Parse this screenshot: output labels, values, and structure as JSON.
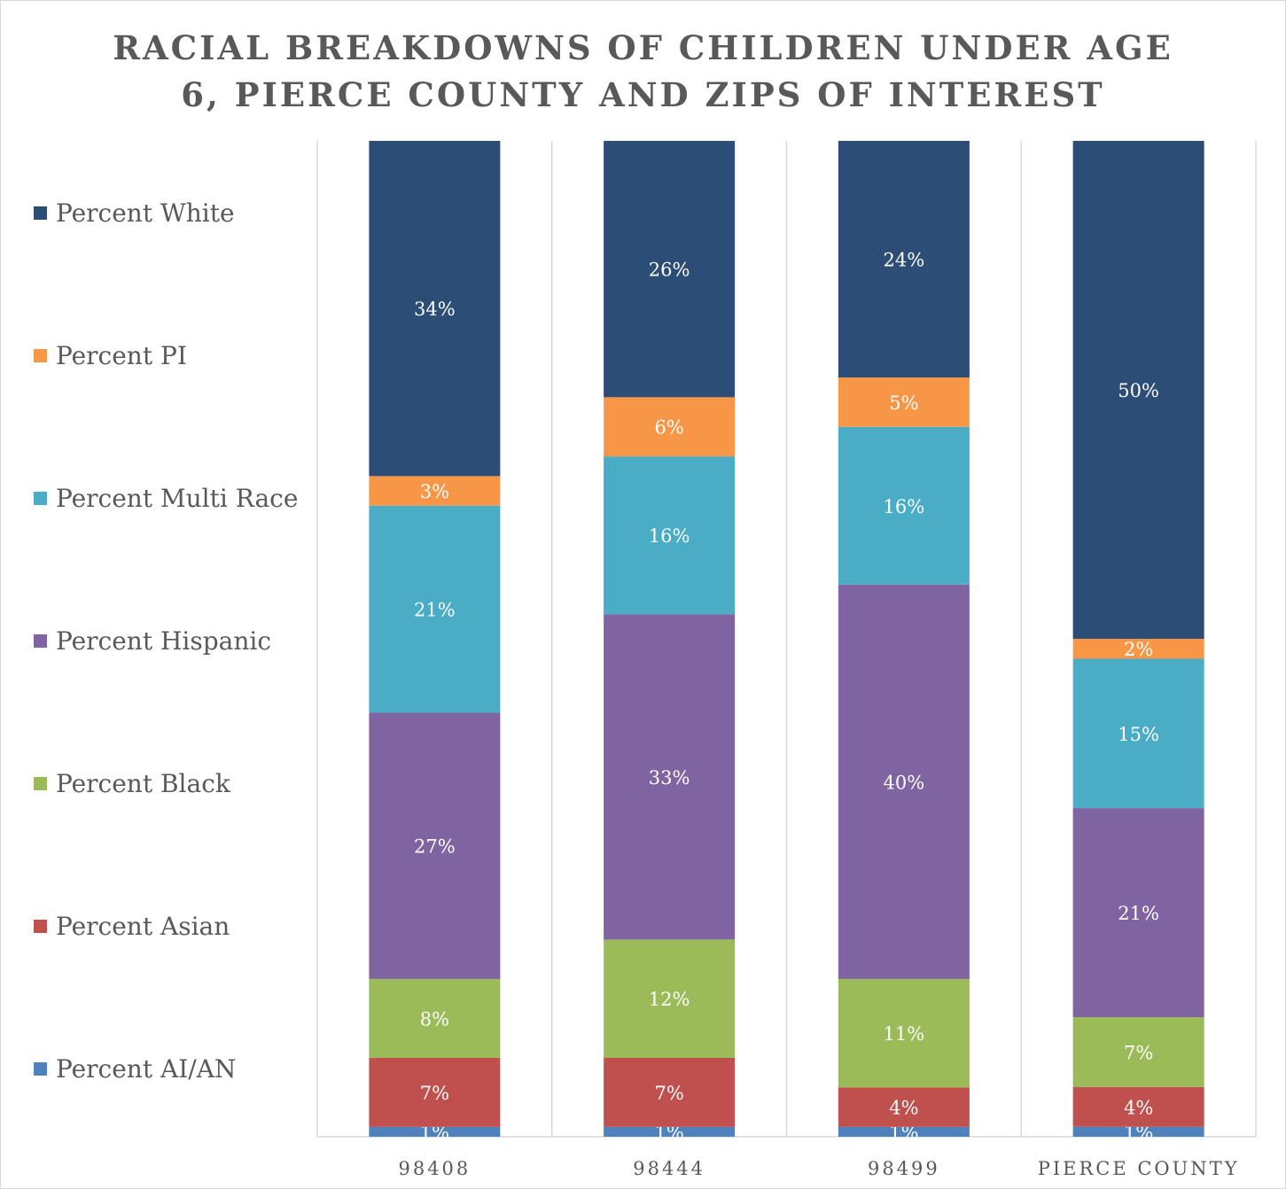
{
  "chart_data": {
    "type": "bar",
    "stacked": true,
    "title_lines": [
      "RACIAL BREAKDOWNS OF CHILDREN UNDER AGE",
      "6, PIERCE COUNTY AND ZIPS OF INTEREST"
    ],
    "categories": [
      "98408",
      "98444",
      "98499",
      "PIERCE COUNTY"
    ],
    "series": [
      {
        "name": "Percent AI/AN",
        "color": "#4f81bd",
        "values": [
          1,
          1,
          1,
          1
        ],
        "labels": [
          "1%",
          "1%",
          "1%",
          "1%"
        ]
      },
      {
        "name": "Percent Asian",
        "color": "#c0504d",
        "values": [
          7,
          7,
          4,
          4
        ],
        "labels": [
          "7%",
          "7%",
          "4%",
          "4%"
        ]
      },
      {
        "name": "Percent Black",
        "color": "#9bbb59",
        "values": [
          8,
          12,
          11,
          7
        ],
        "labels": [
          "8%",
          "12%",
          "11%",
          "7%"
        ]
      },
      {
        "name": "Percent Hispanic",
        "color": "#8064a2",
        "values": [
          27,
          33,
          40,
          21
        ],
        "labels": [
          "27%",
          "33%",
          "40%",
          "21%"
        ]
      },
      {
        "name": "Percent Multi Race",
        "color": "#4bacc6",
        "values": [
          21,
          16,
          16,
          15
        ],
        "labels": [
          "21%",
          "16%",
          "16%",
          "15%"
        ]
      },
      {
        "name": "Percent PI",
        "color": "#f79646",
        "values": [
          3,
          6,
          5,
          2
        ],
        "labels": [
          "3%",
          "6%",
          "5%",
          "2%"
        ]
      },
      {
        "name": "Percent White",
        "color": "#2c4d75",
        "values": [
          34,
          26,
          24,
          50
        ],
        "labels": [
          "34%",
          "26%",
          "24%",
          "50%"
        ]
      }
    ],
    "legend_order": [
      "Percent White",
      "Percent PI",
      "Percent Multi Race",
      "Percent Hispanic",
      "Percent Black",
      "Percent Asian",
      "Percent AI/AN"
    ],
    "legend_position": "left",
    "grid": "vertical"
  }
}
